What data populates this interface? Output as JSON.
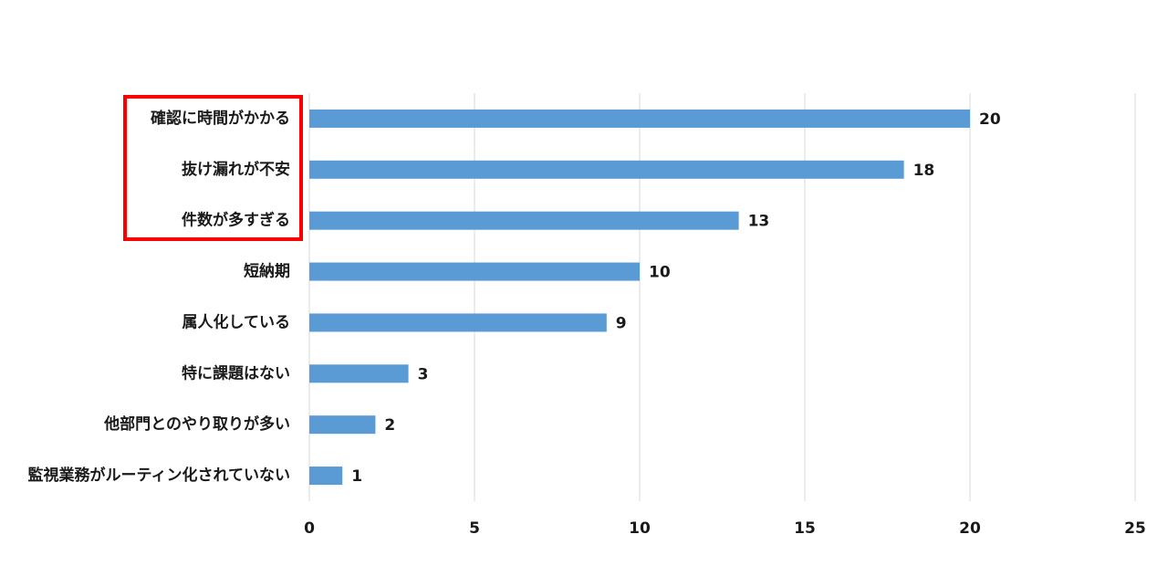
{
  "chart_data": {
    "type": "bar",
    "orientation": "horizontal",
    "categories": [
      "確認に時間がかかる",
      "抜け漏れが不安",
      "件数が多すぎる",
      "短納期",
      "属人化している",
      "特に課題はない",
      "他部門とのやり取りが多い",
      "監視業務がルーティン化されていない"
    ],
    "values": [
      20,
      18,
      13,
      10,
      9,
      3,
      2,
      1
    ],
    "color": "#5b9bd5",
    "xlim": [
      0,
      25
    ],
    "xticks": [
      0,
      5,
      10,
      15,
      20,
      25
    ],
    "grid": true,
    "data_labels": true
  }
}
